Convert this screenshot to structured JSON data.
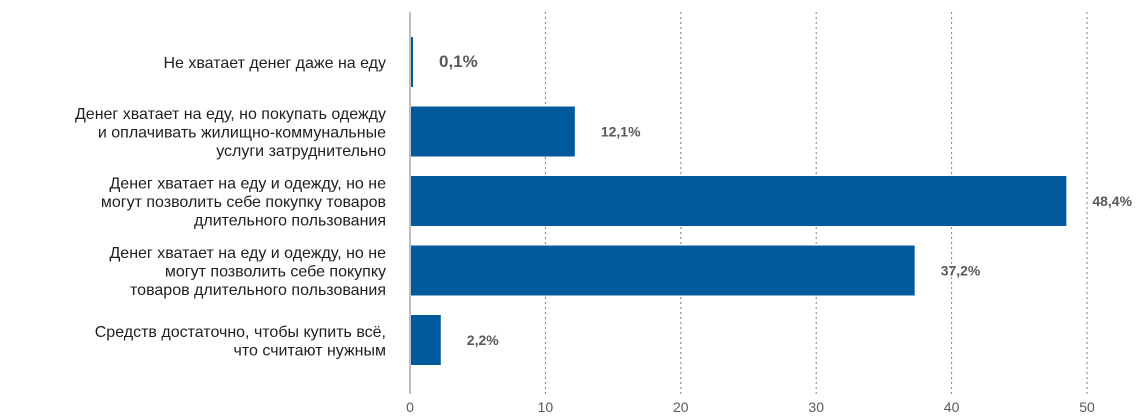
{
  "chart_data": {
    "type": "bar",
    "orientation": "horizontal",
    "title": "",
    "xlabel": "",
    "ylabel": "",
    "xlim": [
      0,
      50
    ],
    "x_ticks": [
      0,
      10,
      20,
      30,
      40,
      50
    ],
    "tick_labels": [
      "0",
      "10",
      "20",
      "30",
      "40",
      "50"
    ],
    "grid": "vertical dotted",
    "categories": [
      "Не хватает денег даже на еду",
      "Денег хватает на еду, но покупать одежду и оплачивать жилищно-коммунальные услуги затруднительно",
      "Денег хватает на еду и одежду, но не могут позволить себе покупку товаров длительного пользования",
      "Денег хватает на еду и одежду, но не могут позволить себе покупку товаров длительного пользования",
      "Средств достаточно, чтобы купить всё, что считают нужным"
    ],
    "category_lines": [
      [
        "Не хватает денег даже на еду"
      ],
      [
        "Денег хватает на еду, но покупать одежду",
        "и оплачивать жилищно-коммунальные",
        "услуги затруднительно"
      ],
      [
        "Денег хватает на еду и одежду, но не",
        "могут позволить себе покупку товаров",
        "длительного пользования"
      ],
      [
        "Денег хватает на еду и одежду, но не",
        "могут позволить себе покупку",
        "товаров длительного пользования"
      ],
      [
        "Средств достаточно, чтобы купить всё,",
        "что считают нужным"
      ]
    ],
    "values": [
      0.1,
      12.1,
      48.4,
      37.2,
      2.2
    ],
    "value_labels": [
      "0,1%",
      "12,1%",
      "48,4%",
      "37,2%",
      "2,2%"
    ],
    "bar_color": "#005a9c",
    "grid_color": "#7f7f7f",
    "axis_color": "#7f7f7f"
  }
}
